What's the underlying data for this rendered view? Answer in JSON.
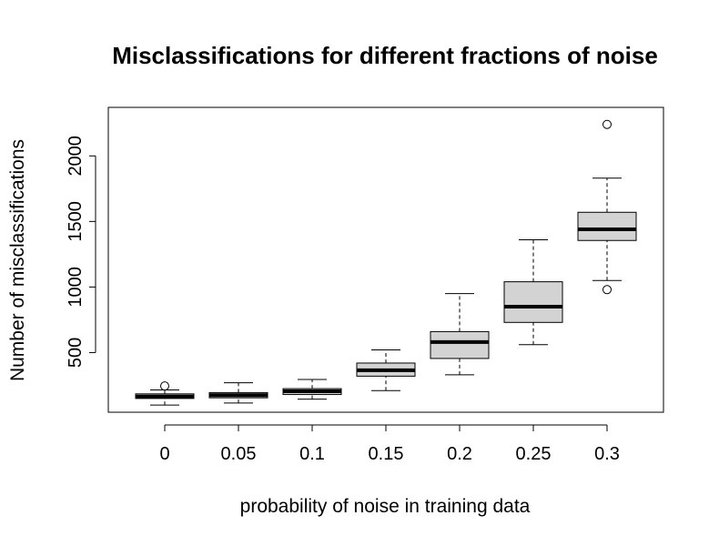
{
  "chart_data": {
    "type": "boxplot",
    "title": "Misclassifications for different fractions of noise",
    "xlabel": "probability of noise in training data",
    "ylabel": "Number of misclassifications",
    "categories": [
      "0",
      "0.05",
      "0.1",
      "0.15",
      "0.2",
      "0.25",
      "0.3"
    ],
    "y_ticks": [
      500,
      1000,
      1500,
      2000
    ],
    "ylim": [
      45,
      2370
    ],
    "boxes": [
      {
        "category": "0",
        "whisker_low": 100,
        "q1": 150,
        "median": 165,
        "q3": 185,
        "whisker_high": 215,
        "outliers": [
          245
        ]
      },
      {
        "category": "0.05",
        "whisker_low": 115,
        "q1": 155,
        "median": 175,
        "q3": 195,
        "whisker_high": 270,
        "outliers": []
      },
      {
        "category": "0.1",
        "whisker_low": 145,
        "q1": 180,
        "median": 205,
        "q3": 225,
        "whisker_high": 295,
        "outliers": []
      },
      {
        "category": "0.15",
        "whisker_low": 210,
        "q1": 320,
        "median": 365,
        "q3": 420,
        "whisker_high": 520,
        "outliers": []
      },
      {
        "category": "0.2",
        "whisker_low": 330,
        "q1": 455,
        "median": 580,
        "q3": 660,
        "whisker_high": 950,
        "outliers": []
      },
      {
        "category": "0.25",
        "whisker_low": 560,
        "q1": 730,
        "median": 850,
        "q3": 1040,
        "whisker_high": 1360,
        "outliers": []
      },
      {
        "category": "0.3",
        "whisker_low": 1050,
        "q1": 1355,
        "median": 1440,
        "q3": 1570,
        "whisker_high": 1830,
        "outliers": [
          980,
          2240
        ]
      }
    ],
    "box_fill": "#d3d3d3",
    "grid": false,
    "legend": "none"
  }
}
